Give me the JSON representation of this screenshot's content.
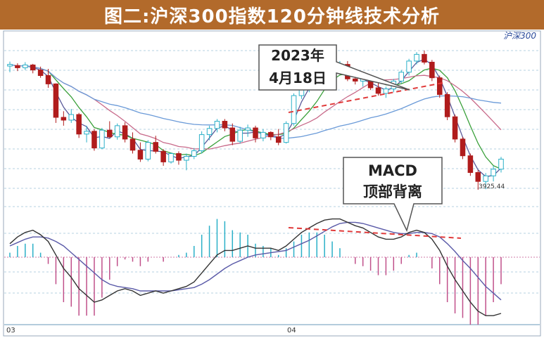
{
  "title": "图二:沪深300指数120分钟线技术分析",
  "chart_data": {
    "type": "candlestick+macd",
    "symbol_label": "沪深300",
    "x_tick_labels": [
      "03",
      "04"
    ],
    "price_low_label": "3925.44",
    "annotations": {
      "date_callout_line1": "2023年",
      "date_callout_line2": "4月18日",
      "macd_callout_line1": "MACD",
      "macd_callout_line2": "顶部背离"
    },
    "colors": {
      "up": "#2bb0c8",
      "down": "#b01c1c",
      "title_bar": "#b26a2b",
      "ma_fast": "#5a5a9a",
      "ma_mid": "#3aa03a",
      "ma_slow": "#c86a8a",
      "ma_long": "#6a9ad8",
      "divergence": "#e03a3a",
      "dif": "#333333",
      "dea": "#5a5aa8",
      "hist_pos": "#2bb0c8",
      "hist_neg": "#c0508a"
    },
    "candles": [
      [
        4147,
        4155,
        4136,
        4150
      ],
      [
        4148,
        4152,
        4138,
        4144
      ],
      [
        4144,
        4154,
        4140,
        4149
      ],
      [
        4149,
        4151,
        4134,
        4140
      ],
      [
        4140,
        4146,
        4126,
        4130
      ],
      [
        4130,
        4142,
        4108,
        4115
      ],
      [
        4115,
        4116,
        4045,
        4055
      ],
      [
        4055,
        4066,
        4040,
        4050
      ],
      [
        4050,
        4070,
        4045,
        4060
      ],
      [
        4060,
        4063,
        4018,
        4025
      ],
      [
        4025,
        4040,
        4010,
        4030
      ],
      [
        4030,
        4034,
        3995,
        4000
      ],
      [
        4000,
        4036,
        3998,
        4032
      ],
      [
        4032,
        4048,
        4018,
        4020
      ],
      [
        4020,
        4044,
        4015,
        4040
      ],
      [
        4040,
        4046,
        4010,
        4016
      ],
      [
        4016,
        4028,
        3990,
        3996
      ],
      [
        3996,
        4010,
        3975,
        3980
      ],
      [
        3980,
        4014,
        3976,
        4010
      ],
      [
        4010,
        4022,
        3990,
        3994
      ],
      [
        3994,
        3998,
        3968,
        3975
      ],
      [
        3975,
        3992,
        3972,
        3990
      ],
      [
        3990,
        3994,
        3970,
        3978
      ],
      [
        3978,
        3990,
        3960,
        3985
      ],
      [
        3985,
        4000,
        3980,
        3995
      ],
      [
        3995,
        4030,
        3990,
        4024
      ],
      [
        4024,
        4040,
        4014,
        4035
      ],
      [
        4035,
        4052,
        4028,
        4048
      ],
      [
        4048,
        4052,
        4030,
        4036
      ],
      [
        4036,
        4044,
        4005,
        4012
      ],
      [
        4012,
        4038,
        4008,
        4032
      ],
      [
        4032,
        4042,
        4020,
        4036
      ],
      [
        4036,
        4040,
        4010,
        4018
      ],
      [
        4018,
        4034,
        4012,
        4028
      ],
      [
        4028,
        4030,
        4014,
        4020
      ],
      [
        4020,
        4034,
        4005,
        4010
      ],
      [
        4010,
        4048,
        4008,
        4044
      ],
      [
        4044,
        4098,
        4040,
        4094
      ],
      [
        4094,
        4116,
        4088,
        4110
      ],
      [
        4110,
        4122,
        4100,
        4118
      ],
      [
        4118,
        4130,
        4110,
        4126
      ],
      [
        4126,
        4142,
        4118,
        4138
      ],
      [
        4138,
        4148,
        4132,
        4144
      ],
      [
        4144,
        4156,
        4136,
        4150
      ],
      [
        4150,
        4156,
        4120,
        4124
      ],
      [
        4124,
        4130,
        4114,
        4120
      ],
      [
        4120,
        4128,
        4110,
        4124
      ],
      [
        4124,
        4130,
        4104,
        4108
      ],
      [
        4108,
        4120,
        4094,
        4098
      ],
      [
        4098,
        4110,
        4090,
        4106
      ],
      [
        4106,
        4124,
        4100,
        4120
      ],
      [
        4120,
        4140,
        4116,
        4136
      ],
      [
        4136,
        4160,
        4130,
        4156
      ],
      [
        4156,
        4172,
        4150,
        4168
      ],
      [
        4168,
        4175,
        4150,
        4154
      ],
      [
        4154,
        4158,
        4120,
        4126
      ],
      [
        4126,
        4130,
        4090,
        4096
      ],
      [
        4096,
        4100,
        4050,
        4056
      ],
      [
        4056,
        4060,
        4010,
        4016
      ],
      [
        4016,
        4020,
        3980,
        3986
      ],
      [
        3986,
        3990,
        3950,
        3956
      ],
      [
        3956,
        3960,
        3925,
        3940
      ],
      [
        3940,
        3955,
        3926,
        3950
      ],
      [
        3950,
        3968,
        3940,
        3962
      ],
      [
        3962,
        3984,
        3956,
        3980
      ]
    ],
    "macd": {
      "dif": [
        12,
        18,
        22,
        24,
        20,
        14,
        2,
        -10,
        -18,
        -28,
        -34,
        -40,
        -38,
        -34,
        -30,
        -28,
        -30,
        -34,
        -32,
        -30,
        -32,
        -30,
        -28,
        -26,
        -22,
        -14,
        -6,
        2,
        6,
        6,
        8,
        10,
        8,
        8,
        8,
        6,
        10,
        16,
        22,
        26,
        30,
        33,
        34,
        34,
        31,
        28,
        26,
        22,
        18,
        16,
        16,
        18,
        22,
        24,
        22,
        16,
        6,
        -8,
        -20,
        -30,
        -40,
        -48,
        -52,
        -52,
        -50
      ],
      "dea": [
        10,
        13,
        16,
        18,
        18,
        17,
        14,
        10,
        4,
        -2,
        -8,
        -14,
        -20,
        -24,
        -26,
        -27,
        -28,
        -30,
        -30,
        -30,
        -30,
        -30,
        -29,
        -28,
        -27,
        -24,
        -20,
        -15,
        -10,
        -6,
        -3,
        0,
        2,
        3,
        4,
        5,
        6,
        9,
        12,
        15,
        19,
        23,
        27,
        30,
        31,
        31,
        30,
        28,
        26,
        24,
        22,
        21,
        21,
        22,
        22,
        21,
        18,
        12,
        5,
        -3,
        -10,
        -18,
        -26,
        -32,
        -38
      ],
      "hist": [
        4,
        10,
        12,
        12,
        4,
        -6,
        -24,
        -40,
        -44,
        -52,
        -52,
        -52,
        -36,
        -20,
        -8,
        -2,
        -4,
        -8,
        -4,
        0,
        -4,
        0,
        2,
        4,
        10,
        20,
        28,
        34,
        32,
        24,
        22,
        20,
        12,
        10,
        8,
        2,
        8,
        14,
        20,
        22,
        22,
        20,
        14,
        8,
        0,
        -6,
        -8,
        -12,
        -16,
        -16,
        -12,
        -6,
        2,
        4,
        0,
        -10,
        -24,
        -40,
        -50,
        -54,
        -60,
        -60,
        -52,
        -40,
        -24
      ]
    },
    "price_range": [
      3915,
      4200
    ],
    "macd_range": [
      -60,
      45
    ],
    "grid": true
  }
}
